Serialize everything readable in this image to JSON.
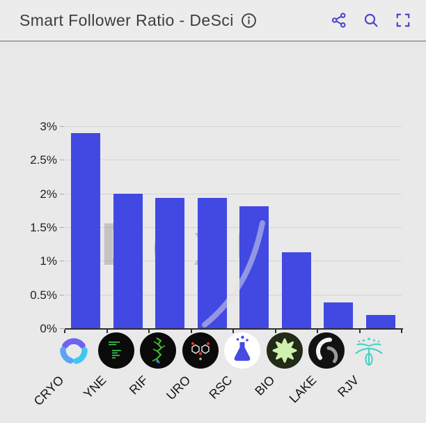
{
  "header": {
    "title": "Smart Follower Ratio - DeSci",
    "info_icon": "info-icon",
    "actions": [
      {
        "name": "share",
        "icon": "share-network-icon"
      },
      {
        "name": "search",
        "icon": "search-icon"
      },
      {
        "name": "fullscreen",
        "icon": "fullscreen-icon"
      }
    ]
  },
  "watermark": {
    "text": "Dexu"
  },
  "chart_data": {
    "type": "bar",
    "title": "Smart Follower Ratio - DeSci",
    "categories": [
      "CRYO",
      "YNE",
      "RIF",
      "URO",
      "RSC",
      "BIO",
      "LAKE",
      "RJV"
    ],
    "values": [
      2.9,
      2.0,
      1.93,
      1.93,
      1.81,
      1.13,
      0.38,
      0.2
    ],
    "unit": "%",
    "xlabel": "",
    "ylabel": "",
    "ylim": [
      0,
      3
    ],
    "yticks": [
      {
        "label": "3%",
        "value": 3
      },
      {
        "label": "2.5%",
        "value": 2.5
      },
      {
        "label": "2%",
        "value": 2
      },
      {
        "label": "1.5%",
        "value": 1.5
      },
      {
        "label": "1%",
        "value": 1
      },
      {
        "label": "0.5%",
        "value": 0.5
      },
      {
        "label": "0%",
        "value": 0
      }
    ],
    "grid": true,
    "legend": false,
    "category_icons": [
      "cryo-token-icon",
      "yne-token-icon",
      "rif-token-icon",
      "uro-token-icon",
      "rsc-token-icon",
      "bio-token-icon",
      "lake-token-icon",
      "rjv-token-icon"
    ]
  },
  "colors": {
    "accent": "#4b46c8",
    "bar": "#4149e2",
    "background": "#e9e9e9",
    "grid": "#d3d3d3",
    "axis": "#2e2e2e",
    "title_text": "#3d3d3d",
    "watermark": "#9d9d9d"
  }
}
